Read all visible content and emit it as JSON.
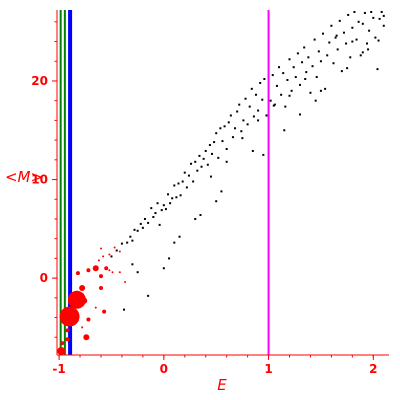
{
  "chart_data": {
    "type": "scatter",
    "title": "",
    "xlabel": "E",
    "ylabel": "<M>",
    "xlim": [
      -1.02,
      2.15
    ],
    "ylim": [
      -7.8,
      27.2
    ],
    "xticks": [
      -1,
      0,
      1,
      2
    ],
    "yticks": [
      0,
      10,
      20
    ],
    "grid": false,
    "colors": {
      "axes": "#ff0000",
      "scatter": "#000000",
      "bubbles": "#ff0000",
      "line_green": "#008000",
      "line_blue": "#0000ff",
      "line_magenta": "#ff00ff"
    },
    "vlines": [
      {
        "x": -0.985,
        "color": "#008000",
        "width": 2
      },
      {
        "x": -0.945,
        "color": "#008000",
        "width": 2
      },
      {
        "x": -0.895,
        "color": "#0000ff",
        "width": 4
      },
      {
        "x": 1.0,
        "color": "#ff00ff",
        "width": 2
      }
    ],
    "red_bubbles": [
      {
        "x": -0.98,
        "y": -7.4,
        "size": 4
      },
      {
        "x": -0.97,
        "y": -6.6,
        "size": 2
      },
      {
        "x": -0.92,
        "y": -5.3,
        "size": 2
      },
      {
        "x": -0.92,
        "y": -6.2,
        "size": 2
      },
      {
        "x": -0.9,
        "y": -3.9,
        "size": 10
      },
      {
        "x": -0.83,
        "y": -2.2,
        "size": 9
      },
      {
        "x": -0.78,
        "y": -1.0,
        "size": 3
      },
      {
        "x": -0.76,
        "y": -2.3,
        "size": 3
      },
      {
        "x": -0.74,
        "y": -6.0,
        "size": 3
      },
      {
        "x": -0.72,
        "y": -4.2,
        "size": 2
      },
      {
        "x": -0.82,
        "y": 0.5,
        "size": 2
      },
      {
        "x": -0.72,
        "y": 0.8,
        "size": 2
      },
      {
        "x": -0.65,
        "y": 1.0,
        "size": 3
      },
      {
        "x": -0.6,
        "y": 0.2,
        "size": 2
      },
      {
        "x": -0.6,
        "y": -1.0,
        "size": 2
      },
      {
        "x": -0.57,
        "y": -3.4,
        "size": 2
      },
      {
        "x": -0.55,
        "y": 1.0,
        "size": 2
      },
      {
        "x": -0.52,
        "y": 0.8,
        "size": 1
      },
      {
        "x": -0.49,
        "y": 0.6,
        "size": 1
      },
      {
        "x": -0.42,
        "y": 0.6,
        "size": 1
      },
      {
        "x": -0.62,
        "y": 1.8,
        "size": 1
      },
      {
        "x": -0.58,
        "y": 2.2,
        "size": 1
      },
      {
        "x": -0.6,
        "y": 3.0,
        "size": 1
      },
      {
        "x": -0.52,
        "y": 2.4,
        "size": 1
      },
      {
        "x": -0.47,
        "y": 3.1,
        "size": 1
      },
      {
        "x": -0.42,
        "y": 2.7,
        "size": 1
      },
      {
        "x": -0.37,
        "y": -0.4,
        "size": 1
      },
      {
        "x": -0.78,
        "y": -5.0,
        "size": 1
      },
      {
        "x": -0.65,
        "y": -3.0,
        "size": 1
      }
    ],
    "scatter": {
      "x": [
        -0.5,
        -0.45,
        -0.4,
        -0.38,
        -0.35,
        -0.32,
        -0.3,
        -0.28,
        -0.25,
        -0.22,
        -0.2,
        -0.18,
        -0.15,
        -0.12,
        -0.1,
        -0.08,
        -0.06,
        -0.04,
        -0.02,
        0.0,
        0.02,
        0.04,
        0.06,
        0.08,
        0.1,
        0.12,
        0.14,
        0.16,
        0.18,
        0.2,
        0.22,
        0.24,
        0.26,
        0.28,
        0.3,
        0.32,
        0.34,
        0.36,
        0.38,
        0.4,
        0.42,
        0.44,
        0.46,
        0.48,
        0.5,
        0.52,
        0.54,
        0.56,
        0.58,
        0.6,
        0.62,
        0.64,
        0.66,
        0.68,
        0.7,
        0.72,
        0.74,
        0.76,
        0.78,
        0.8,
        0.82,
        0.84,
        0.86,
        0.88,
        0.9,
        0.92,
        0.94,
        0.96,
        0.98,
        1.02,
        1.04,
        1.06,
        1.08,
        1.1,
        1.12,
        1.14,
        1.16,
        1.18,
        1.2,
        1.22,
        1.24,
        1.26,
        1.28,
        1.3,
        1.32,
        1.34,
        1.36,
        1.38,
        1.4,
        1.42,
        1.44,
        1.46,
        1.48,
        1.5,
        1.52,
        1.54,
        1.56,
        1.58,
        1.6,
        1.62,
        1.64,
        1.66,
        1.68,
        1.7,
        1.72,
        1.74,
        1.76,
        1.78,
        1.8,
        1.82,
        1.84,
        1.86,
        1.88,
        1.9,
        1.92,
        1.94,
        1.96,
        1.98,
        2.0,
        2.02,
        2.04,
        2.06,
        2.08,
        2.1,
        -0.15,
        0.0,
        0.15,
        0.3,
        0.45,
        0.6,
        0.75,
        0.9,
        1.05,
        1.2,
        1.35,
        1.5,
        1.65,
        1.8,
        1.95,
        2.1,
        -0.25,
        0.05,
        0.35,
        0.55,
        0.85,
        1.15,
        1.45,
        1.75,
        2.05,
        -0.3,
        0.1,
        0.5,
        0.95,
        1.3,
        1.9
      ],
      "y": [
        2.2,
        2.8,
        3.5,
        -3.2,
        3.6,
        4.2,
        3.8,
        4.9,
        4.8,
        5.5,
        5.1,
        6.0,
        5.6,
        7.1,
        6.2,
        6.6,
        7.6,
        5.4,
        6.9,
        7.4,
        7.0,
        8.5,
        7.6,
        8.1,
        9.4,
        8.2,
        9.6,
        8.4,
        9.8,
        10.7,
        9.2,
        10.4,
        11.6,
        9.8,
        11.8,
        10.9,
        12.4,
        11.3,
        12.1,
        12.9,
        11.5,
        13.5,
        12.6,
        13.8,
        14.7,
        12.2,
        15.2,
        13.9,
        15.4,
        13.1,
        15.8,
        16.5,
        14.3,
        15.2,
        16.9,
        17.6,
        14.9,
        16.0,
        18.2,
        15.6,
        17.4,
        19.2,
        16.4,
        18.6,
        17.0,
        19.8,
        18.1,
        20.2,
        16.5,
        18.0,
        20.6,
        17.6,
        19.5,
        21.4,
        18.6,
        20.8,
        17.4,
        20.1,
        22.2,
        19.0,
        21.4,
        20.4,
        22.8,
        19.6,
        21.9,
        23.4,
        20.9,
        22.4,
        18.8,
        21.5,
        24.2,
        20.4,
        23.0,
        22.0,
        24.8,
        19.2,
        22.6,
        23.9,
        25.6,
        21.8,
        24.4,
        23.2,
        26.1,
        21.0,
        24.9,
        23.8,
        26.7,
        22.4,
        25.4,
        27.0,
        24.2,
        26.0,
        22.6,
        25.8,
        26.9,
        23.8,
        25.1,
        27.0,
        26.4,
        24.4,
        21.2,
        26.3,
        27.0,
        25.6,
        -1.8,
        1.0,
        4.2,
        6.0,
        10.3,
        11.8,
        14.2,
        16.0,
        17.5,
        18.5,
        20.2,
        19.0,
        24.6,
        24.0,
        23.2,
        26.6,
        0.6,
        2.0,
        6.4,
        8.8,
        12.9,
        15.0,
        18.0,
        21.3,
        24.1,
        1.4,
        3.6,
        7.8,
        12.5,
        16.6,
        22.9
      ]
    }
  }
}
